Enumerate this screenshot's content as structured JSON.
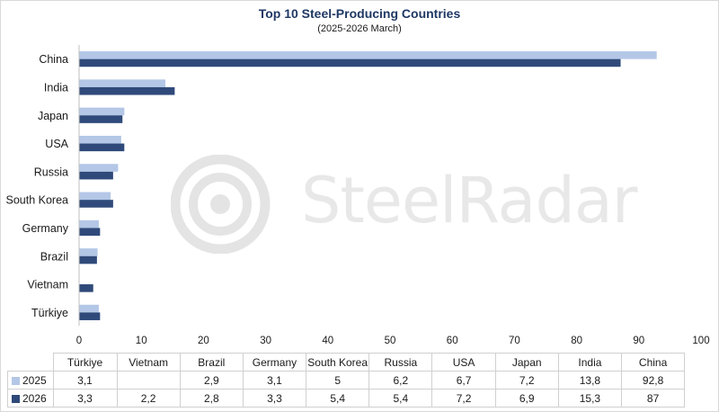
{
  "chart_data": {
    "type": "bar",
    "orientation": "horizontal",
    "title": "Top 10 Steel-Producing Countries",
    "subtitle": "(2025-2026 March)",
    "categories": [
      "Türkiye",
      "Vietnam",
      "Brazil",
      "Germany",
      "South Korea",
      "Russia",
      "USA",
      "Japan",
      "India",
      "China"
    ],
    "series": [
      {
        "name": "2025",
        "color": "#b4c7e7",
        "values": [
          3.1,
          null,
          2.9,
          3.1,
          5,
          6.2,
          6.7,
          7.2,
          13.8,
          92.8
        ],
        "labels": [
          "3,1",
          "",
          "2,9",
          "3,1",
          "5",
          "6,2",
          "6,7",
          "7,2",
          "13,8",
          "92,8"
        ]
      },
      {
        "name": "2026",
        "color": "#2f4a7a",
        "values": [
          3.3,
          2.2,
          2.8,
          3.3,
          5.4,
          5.4,
          7.2,
          6.9,
          15.3,
          87
        ],
        "labels": [
          "3,3",
          "2,2",
          "2,8",
          "3,3",
          "5,4",
          "5,4",
          "7,2",
          "6,9",
          "15,3",
          "87"
        ]
      }
    ],
    "xlim": [
      0,
      100
    ],
    "x_ticks": [
      "0",
      "10",
      "20",
      "30",
      "40",
      "50",
      "60",
      "70",
      "80",
      "90",
      "100"
    ],
    "grid": false,
    "legend": "data-table-below"
  },
  "watermark": {
    "text": "SteelRadar"
  }
}
